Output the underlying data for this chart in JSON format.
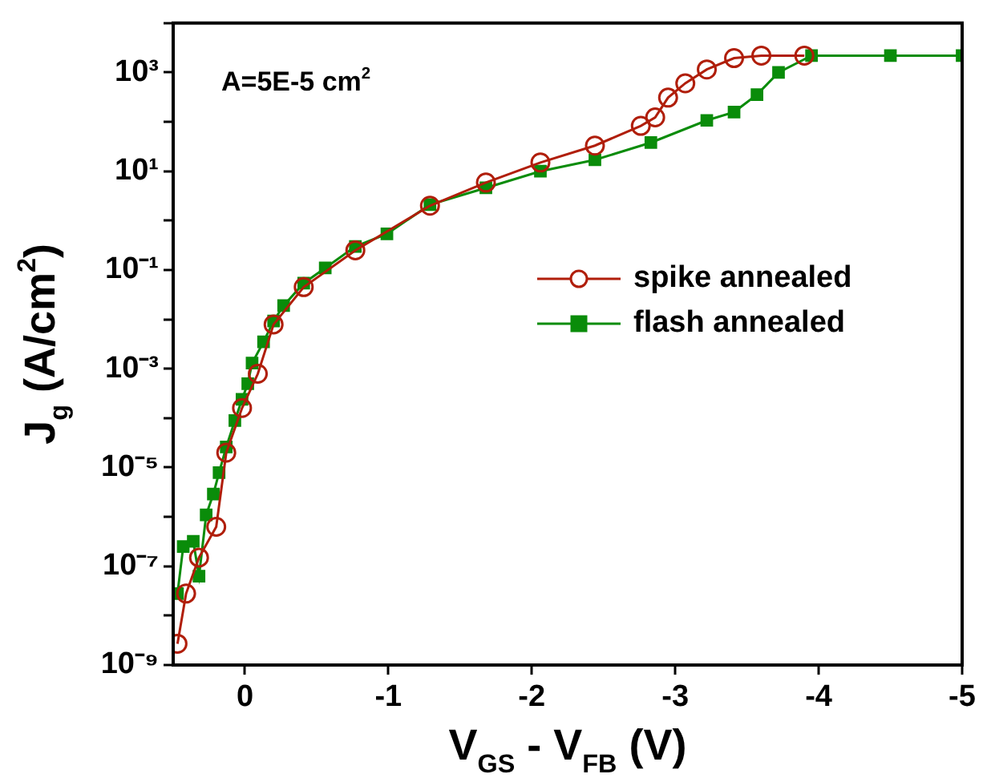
{
  "chart_data": {
    "type": "line",
    "xlabel": "V$_{GS}$ - V$_{FB}$ (V)",
    "ylabel": "J$_{g}$ (A/cm$^{2}$)",
    "annotations": [
      "A=5E-5 cm$^{2}$"
    ],
    "xlim": [
      0.5,
      -5
    ],
    "xticks": [
      0,
      -1,
      -2,
      -3,
      -4,
      -5
    ],
    "ylim": [
      1e-09,
      10000
    ],
    "log": "y",
    "yticks": [
      {
        "value": 1e-09,
        "label": "10⁻⁹"
      },
      {
        "value": 1e-08,
        "label": null
      },
      {
        "value": 1e-07,
        "label": "10⁻⁷"
      },
      {
        "value": 1e-06,
        "label": null
      },
      {
        "value": 1e-05,
        "label": "10⁻⁵"
      },
      {
        "value": 0.0001,
        "label": null
      },
      {
        "value": 0.001,
        "label": "10⁻³"
      },
      {
        "value": 0.01,
        "label": null
      },
      {
        "value": 0.1,
        "label": "10⁻¹"
      },
      {
        "value": 1,
        "label": null
      },
      {
        "value": 10,
        "label": "10¹"
      },
      {
        "value": 100,
        "label": null
      },
      {
        "value": 1000,
        "label": "10³"
      },
      {
        "value": 10000,
        "label": null
      }
    ],
    "grid": false,
    "legend": "right",
    "line_style": "solid",
    "series": [
      {
        "name": "spike annealed",
        "color": "#b01e0a",
        "marker": "circle",
        "x": [
          0.47,
          0.41,
          0.32,
          0.2,
          0.13,
          0.02,
          -0.09,
          -0.2,
          -0.41,
          -0.77,
          -1.29,
          -1.68,
          -2.06,
          -2.44,
          -2.76,
          -2.86,
          -2.95,
          -3.07,
          -3.22,
          -3.41,
          -3.6,
          -3.9
        ],
        "values": [
          2.7e-09,
          2.8e-08,
          1.5e-07,
          6.3e-07,
          2e-05,
          0.00016,
          0.00079,
          0.0079,
          0.045,
          0.25,
          2.0,
          5.9,
          15,
          33,
          83,
          123,
          309,
          603,
          1150,
          1950,
          2190,
          2190
        ]
      },
      {
        "name": "flash annealed",
        "color": "#0a8c0a",
        "marker": "square",
        "x": [
          0.47,
          0.43,
          0.36,
          0.32,
          0.27,
          0.22,
          0.18,
          0.13,
          0.07,
          0.02,
          -0.02,
          -0.05,
          -0.13,
          -0.2,
          -0.27,
          -0.41,
          -0.56,
          -0.77,
          -0.99,
          -1.29,
          -1.68,
          -2.06,
          -2.44,
          -2.83,
          -3.22,
          -3.41,
          -3.57,
          -3.72,
          -3.95,
          -4.5,
          -5.0
        ],
        "values": [
          2.8e-08,
          2.5e-07,
          3.2e-07,
          6.3e-08,
          1.1e-06,
          2.9e-06,
          7.9e-06,
          2.6e-05,
          8.9e-05,
          0.00024,
          0.0005,
          0.0013,
          0.0035,
          0.0093,
          0.019,
          0.054,
          0.11,
          0.3,
          0.54,
          2.1,
          4.6,
          10,
          17,
          38,
          107,
          158,
          355,
          1000,
          2190,
          2190,
          2190
        ]
      }
    ]
  }
}
